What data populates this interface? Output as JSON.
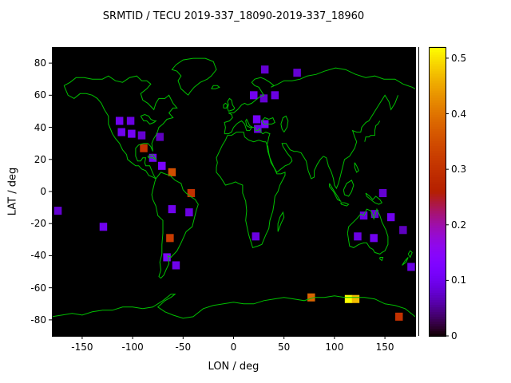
{
  "chart_data": {
    "type": "heatmap",
    "title": "SRMTID / TECU 2019-337_18090-2019-337_18960",
    "xlabel": "LON / deg",
    "ylabel": "LAT / deg",
    "xlim": [
      -180,
      180
    ],
    "ylim": [
      -90,
      90
    ],
    "xticks": [
      -150,
      -100,
      -50,
      0,
      50,
      100,
      150
    ],
    "yticks": [
      -80,
      -60,
      -40,
      -20,
      0,
      20,
      40,
      60,
      80
    ],
    "grid": false,
    "legend": "colorbar-right",
    "background_color": "#000000",
    "coastline_color": "#00c000",
    "colorbar": {
      "min": 0,
      "max": 0.52,
      "ticks": [
        0,
        0.1,
        0.2,
        0.3,
        0.4,
        0.5
      ],
      "palette_stops": [
        "#000000",
        "#8004ff",
        "#b42000",
        "#dd6b00",
        "#ffff00"
      ]
    },
    "cell_deg": {
      "lon": 7.5,
      "lat": 5
    },
    "points": [
      {
        "lon": -113,
        "lat": 44,
        "tecu": 0.1
      },
      {
        "lon": -102,
        "lat": 44,
        "tecu": 0.09
      },
      {
        "lon": -111,
        "lat": 37,
        "tecu": 0.1
      },
      {
        "lon": -101,
        "lat": 36,
        "tecu": 0.11
      },
      {
        "lon": -91,
        "lat": 35,
        "tecu": 0.08
      },
      {
        "lon": -73,
        "lat": 34,
        "tecu": 0.07
      },
      {
        "lon": -89,
        "lat": 27,
        "tecu": 0.3
      },
      {
        "lon": -80,
        "lat": 21,
        "tecu": 0.1
      },
      {
        "lon": -71,
        "lat": 16,
        "tecu": 0.12
      },
      {
        "lon": -61,
        "lat": 12,
        "tecu": 0.35
      },
      {
        "lon": -42,
        "lat": -1,
        "tecu": 0.3
      },
      {
        "lon": -61,
        "lat": -11,
        "tecu": 0.1
      },
      {
        "lon": -44,
        "lat": -13,
        "tecu": 0.09
      },
      {
        "lon": -174,
        "lat": -12,
        "tecu": 0.08
      },
      {
        "lon": -129,
        "lat": -22,
        "tecu": 0.1
      },
      {
        "lon": -63,
        "lat": -29,
        "tecu": 0.32
      },
      {
        "lon": -66,
        "lat": -41,
        "tecu": 0.12
      },
      {
        "lon": -57,
        "lat": -46,
        "tecu": 0.1
      },
      {
        "lon": 31,
        "lat": 76,
        "tecu": 0.08
      },
      {
        "lon": 63,
        "lat": 74,
        "tecu": 0.08
      },
      {
        "lon": 20,
        "lat": 60,
        "tecu": 0.1
      },
      {
        "lon": 30,
        "lat": 58,
        "tecu": 0.08
      },
      {
        "lon": 41,
        "lat": 60,
        "tecu": 0.09
      },
      {
        "lon": 23,
        "lat": 45,
        "tecu": 0.11
      },
      {
        "lon": 31,
        "lat": 42,
        "tecu": 0.12
      },
      {
        "lon": 24,
        "lat": 39,
        "tecu": 0.09
      },
      {
        "lon": 22,
        "lat": -28,
        "tecu": 0.09
      },
      {
        "lon": 148,
        "lat": -1,
        "tecu": 0.08
      },
      {
        "lon": 129,
        "lat": -15,
        "tecu": 0.09
      },
      {
        "lon": 140,
        "lat": -14,
        "tecu": 0.08
      },
      {
        "lon": 156,
        "lat": -16,
        "tecu": 0.1
      },
      {
        "lon": 123,
        "lat": -28,
        "tecu": 0.09
      },
      {
        "lon": 139,
        "lat": -29,
        "tecu": 0.1
      },
      {
        "lon": 168,
        "lat": -24,
        "tecu": 0.07
      },
      {
        "lon": 176,
        "lat": -47,
        "tecu": 0.09
      },
      {
        "lon": 77,
        "lat": -66,
        "tecu": 0.38
      },
      {
        "lon": 114,
        "lat": -67,
        "tecu": 0.52
      },
      {
        "lon": 121,
        "lat": -67,
        "tecu": 0.47
      },
      {
        "lon": 164,
        "lat": -78,
        "tecu": 0.3
      }
    ]
  }
}
